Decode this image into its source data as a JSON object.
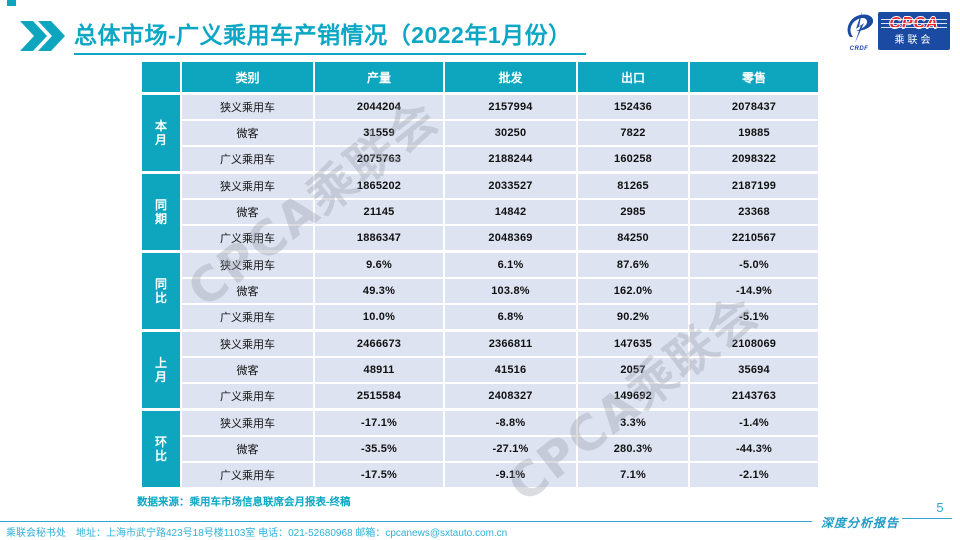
{
  "header": {
    "title": "总体市场-广义乘用车产销情况（2022年1月份）",
    "logo": {
      "emblem_sub": "CRDF",
      "main": "CPCA",
      "sub": "乘联会"
    }
  },
  "table": {
    "columns": [
      "类别",
      "产量",
      "批发",
      "出口",
      "零售"
    ],
    "groups": [
      {
        "label": "本月",
        "rows": [
          {
            "category": "狭义乘用车",
            "values": [
              "2044204",
              "2157994",
              "152436",
              "2078437"
            ]
          },
          {
            "category": "微客",
            "values": [
              "31559",
              "30250",
              "7822",
              "19885"
            ]
          },
          {
            "category": "广义乘用车",
            "values": [
              "2075763",
              "2188244",
              "160258",
              "2098322"
            ]
          }
        ]
      },
      {
        "label": "同期",
        "rows": [
          {
            "category": "狭义乘用车",
            "values": [
              "1865202",
              "2033527",
              "81265",
              "2187199"
            ]
          },
          {
            "category": "微客",
            "values": [
              "21145",
              "14842",
              "2985",
              "23368"
            ]
          },
          {
            "category": "广义乘用车",
            "values": [
              "1886347",
              "2048369",
              "84250",
              "2210567"
            ]
          }
        ]
      },
      {
        "label": "同比",
        "rows": [
          {
            "category": "狭义乘用车",
            "values": [
              "9.6%",
              "6.1%",
              "87.6%",
              "-5.0%"
            ]
          },
          {
            "category": "微客",
            "values": [
              "49.3%",
              "103.8%",
              "162.0%",
              "-14.9%"
            ]
          },
          {
            "category": "广义乘用车",
            "values": [
              "10.0%",
              "6.8%",
              "90.2%",
              "-5.1%"
            ]
          }
        ]
      },
      {
        "label": "上月",
        "rows": [
          {
            "category": "狭义乘用车",
            "values": [
              "2466673",
              "2366811",
              "147635",
              "2108069"
            ]
          },
          {
            "category": "微客",
            "values": [
              "48911",
              "41516",
              "2057",
              "35694"
            ]
          },
          {
            "category": "广义乘用车",
            "values": [
              "2515584",
              "2408327",
              "149692",
              "2143763"
            ]
          }
        ]
      },
      {
        "label": "环比",
        "rows": [
          {
            "category": "狭义乘用车",
            "values": [
              "-17.1%",
              "-8.8%",
              "3.3%",
              "-1.4%"
            ]
          },
          {
            "category": "微客",
            "values": [
              "-35.5%",
              "-27.1%",
              "280.3%",
              "-44.3%"
            ]
          },
          {
            "category": "广义乘用车",
            "values": [
              "-17.5%",
              "-9.1%",
              "7.1%",
              "-2.1%"
            ]
          }
        ]
      }
    ]
  },
  "source_note": "数据来源：乘用车市场信息联席会月报表-终稿",
  "watermark_text": "CPCA乘联会",
  "footer": {
    "contact": "乘联会秘书处　地址：上海市武宁路423号18号楼1103室 电话：021-52680968  邮箱：cpcanews@sxtauto.com.cn",
    "report_label": "深度分析报告",
    "page_number": "5"
  },
  "colors": {
    "teal": "#0da6be",
    "title_teal": "#0ba7c4",
    "row_bg": "#dde3f1",
    "logo_blue": "#1b4aa2",
    "logo_red": "#e8262d"
  }
}
